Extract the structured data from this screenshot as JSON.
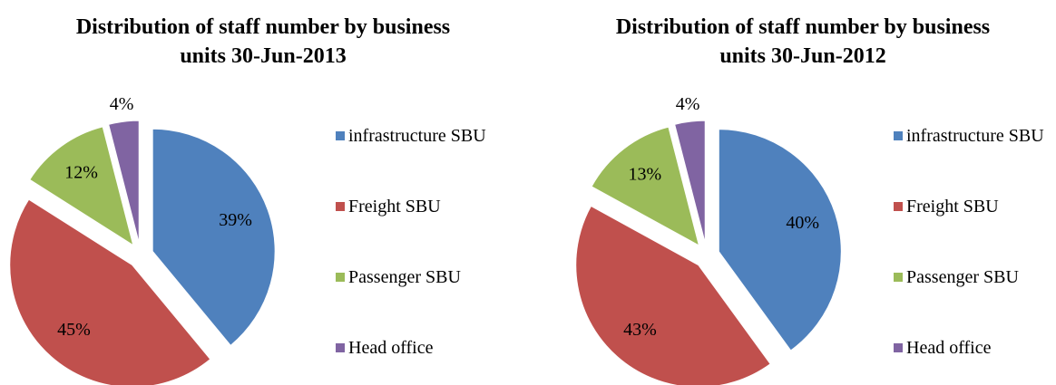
{
  "chart_data": [
    {
      "type": "pie",
      "title": "Distribution of staff number by business units 30-Jun-2013",
      "categories": [
        "infrastructure SBU",
        "Freight SBU",
        "Passenger SBU",
        "Head office"
      ],
      "values": [
        39,
        45,
        12,
        4
      ],
      "value_labels": [
        "39%",
        "45%",
        "12%",
        "4%"
      ],
      "colors": [
        "#4f81bd",
        "#c0504d",
        "#9bbb59",
        "#8064a2"
      ],
      "exploded": true,
      "legend": "right"
    },
    {
      "type": "pie",
      "title": "Distribution of staff number by business units 30-Jun-2012",
      "categories": [
        "infrastructure SBU",
        "Freight SBU",
        "Passenger SBU",
        "Head office"
      ],
      "values": [
        40,
        43,
        13,
        4
      ],
      "value_labels": [
        "40%",
        "43%",
        "13%",
        "4%"
      ],
      "colors": [
        "#4f81bd",
        "#c0504d",
        "#9bbb59",
        "#8064a2"
      ],
      "exploded": true,
      "legend": "right"
    }
  ]
}
